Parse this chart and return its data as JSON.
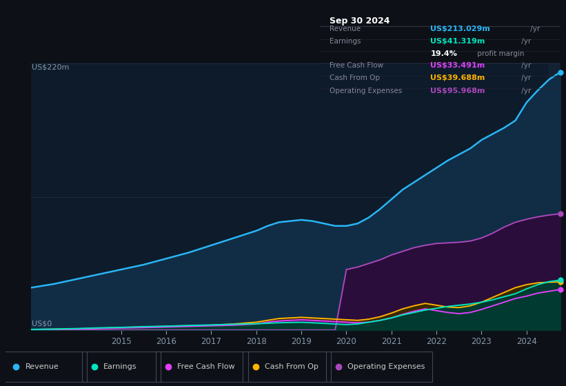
{
  "bg_color": "#0d1117",
  "chart_bg": "#0d1b2a",
  "ylabel_top": "US$220m",
  "ylabel_bottom": "US$0",
  "years": [
    2013.0,
    2013.5,
    2014.0,
    2014.5,
    2015.0,
    2015.5,
    2016.0,
    2016.5,
    2017.0,
    2017.5,
    2018.0,
    2018.25,
    2018.5,
    2018.75,
    2019.0,
    2019.25,
    2019.5,
    2019.75,
    2020.0,
    2020.25,
    2020.5,
    2020.75,
    2021.0,
    2021.25,
    2021.5,
    2021.75,
    2022.0,
    2022.25,
    2022.5,
    2022.75,
    2023.0,
    2023.25,
    2023.5,
    2023.75,
    2024.0,
    2024.25,
    2024.5,
    2024.75
  ],
  "revenue": [
    35,
    38,
    42,
    46,
    50,
    54,
    59,
    64,
    70,
    76,
    82,
    86,
    89,
    90,
    91,
    90,
    88,
    86,
    86,
    88,
    93,
    100,
    108,
    116,
    122,
    128,
    134,
    140,
    145,
    150,
    157,
    162,
    167,
    173,
    188,
    198,
    207,
    213
  ],
  "earnings": [
    0.5,
    0.8,
    1.2,
    1.8,
    2.2,
    2.8,
    3.2,
    3.8,
    4.2,
    4.8,
    5.2,
    5.6,
    6.0,
    6.2,
    6.4,
    6.0,
    5.5,
    5.0,
    4.5,
    5.0,
    6.5,
    8.0,
    10.0,
    12.5,
    14.5,
    16.5,
    18.0,
    19.5,
    20.5,
    21.5,
    23.0,
    25.0,
    27.5,
    30.0,
    34.0,
    37.5,
    40.0,
    41.3
  ],
  "free_cash_flow": [
    0.3,
    0.5,
    0.8,
    1.2,
    1.6,
    2.0,
    2.5,
    3.0,
    3.5,
    4.0,
    5.0,
    6.5,
    7.5,
    8.0,
    8.5,
    8.0,
    7.5,
    7.0,
    6.5,
    6.0,
    6.5,
    8.0,
    10.0,
    13.0,
    15.5,
    17.5,
    16.0,
    14.5,
    13.5,
    14.5,
    17.0,
    20.0,
    23.0,
    26.0,
    28.0,
    30.5,
    32.0,
    33.5
  ],
  "cash_from_op": [
    0.4,
    0.7,
    1.0,
    1.5,
    2.0,
    2.5,
    3.0,
    3.5,
    4.0,
    5.0,
    6.5,
    8.0,
    9.5,
    10.0,
    10.5,
    10.0,
    9.5,
    9.0,
    8.5,
    8.0,
    9.0,
    11.0,
    14.0,
    17.5,
    20.0,
    22.0,
    20.5,
    19.0,
    18.5,
    20.0,
    23.0,
    27.0,
    31.0,
    35.0,
    37.5,
    39.0,
    39.5,
    39.7
  ],
  "operating_expenses": [
    0.0,
    0.0,
    0.0,
    0.0,
    0.0,
    0.0,
    0.0,
    0.0,
    0.0,
    0.0,
    0.0,
    0.0,
    0.0,
    0.0,
    0.0,
    0.0,
    0.0,
    0.0,
    50.0,
    52.0,
    55.0,
    58.0,
    62.0,
    65.0,
    68.0,
    70.0,
    71.5,
    72.0,
    72.5,
    73.5,
    76.0,
    80.0,
    85.0,
    89.0,
    91.5,
    93.5,
    95.0,
    96.0
  ],
  "xticks": [
    2015,
    2016,
    2017,
    2018,
    2019,
    2020,
    2021,
    2022,
    2023,
    2024
  ],
  "ylim": [
    0,
    220
  ],
  "revenue_line_color": "#29b6f6",
  "revenue_fill_color": "#112d45",
  "earnings_line_color": "#00e5c0",
  "earnings_fill_color": "#003a30",
  "fcf_line_color": "#e040fb",
  "fcf_fill_color": "#4a1060",
  "cfop_line_color": "#ffb300",
  "cfop_fill_color": "#3a2800",
  "opex_line_color": "#ab47bc",
  "opex_fill_color": "#2a0d3a",
  "grid_color": "#1e2d40",
  "grid_line2": 110,
  "axis_text_color": "#8899aa",
  "infobox": {
    "date": "Sep 30 2024",
    "date_color": "#ffffff",
    "rows": [
      {
        "label": "Revenue",
        "value": "US$213.029m",
        "unit": " /yr",
        "val_color": "#29b6f6"
      },
      {
        "label": "Earnings",
        "value": "US$41.319m",
        "unit": " /yr",
        "val_color": "#00e5c0"
      },
      {
        "label": "",
        "value": "19.4%",
        "unit": " profit margin",
        "val_color": "#ffffff"
      },
      {
        "label": "Free Cash Flow",
        "value": "US$33.491m",
        "unit": " /yr",
        "val_color": "#e040fb"
      },
      {
        "label": "Cash From Op",
        "value": "US$39.688m",
        "unit": " /yr",
        "val_color": "#ffb300"
      },
      {
        "label": "Operating Expenses",
        "value": "US$95.968m",
        "unit": " /yr",
        "val_color": "#ab47bc"
      }
    ],
    "label_color": "#888899",
    "unit_color": "#888899",
    "bg_color": "#0a0a0a",
    "border_color": "#333344"
  },
  "legend": {
    "labels": [
      "Revenue",
      "Earnings",
      "Free Cash Flow",
      "Cash From Op",
      "Operating Expenses"
    ],
    "colors": [
      "#29b6f6",
      "#00e5c0",
      "#e040fb",
      "#ffb300",
      "#ab47bc"
    ],
    "text_color": "#cccccc",
    "border_color": "#444455",
    "bg_color": "#0d1117"
  }
}
